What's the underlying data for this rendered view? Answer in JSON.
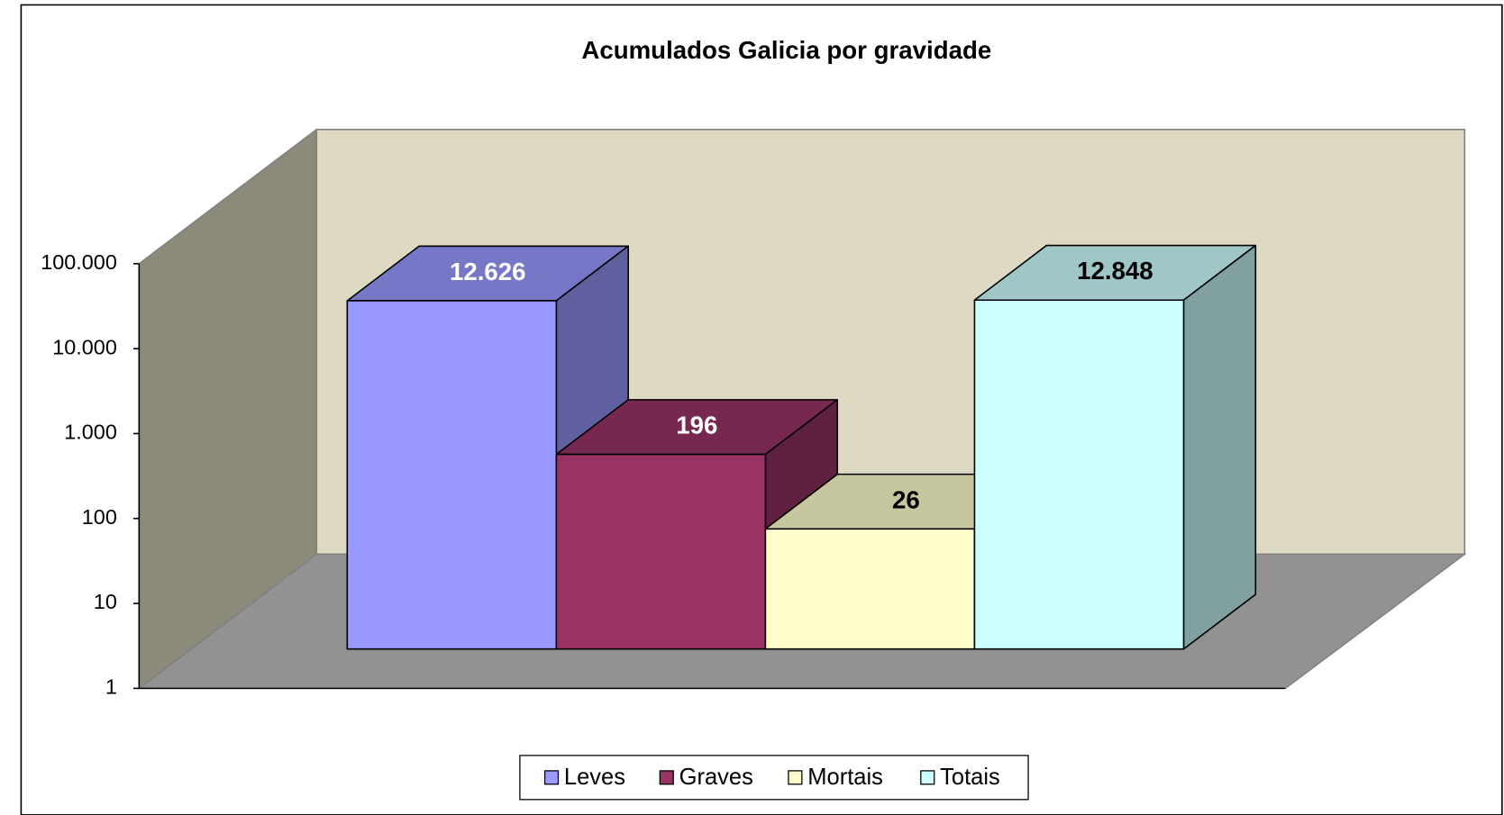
{
  "chart_data": {
    "type": "bar3d",
    "title": "Acumulados Galicia por gravidade",
    "log_scale": true,
    "ylim": [
      1,
      100000
    ],
    "yticks": [
      1,
      10,
      100,
      {
        "value": 1000,
        "label": "1.000"
      },
      {
        "value": 10000,
        "label": "10.000"
      },
      {
        "value": 100000,
        "label": "100.000"
      }
    ],
    "legend": "bottom",
    "series": [
      {
        "name": "Leves",
        "color": "#9999ff",
        "label_color": "#ffffff",
        "values": [
          12626
        ],
        "value_labels": [
          "12.626"
        ]
      },
      {
        "name": "Graves",
        "color": "#993366",
        "label_color": "#ffffff",
        "values": [
          196
        ]
      },
      {
        "name": "Mortais",
        "color": "#ffffcc",
        "label_color": "#000000",
        "values": [
          26
        ]
      },
      {
        "name": "Totais",
        "color": "#ccffff",
        "label_color": "#000000",
        "values": [
          12848
        ],
        "value_labels": [
          "12.848"
        ]
      }
    ]
  }
}
